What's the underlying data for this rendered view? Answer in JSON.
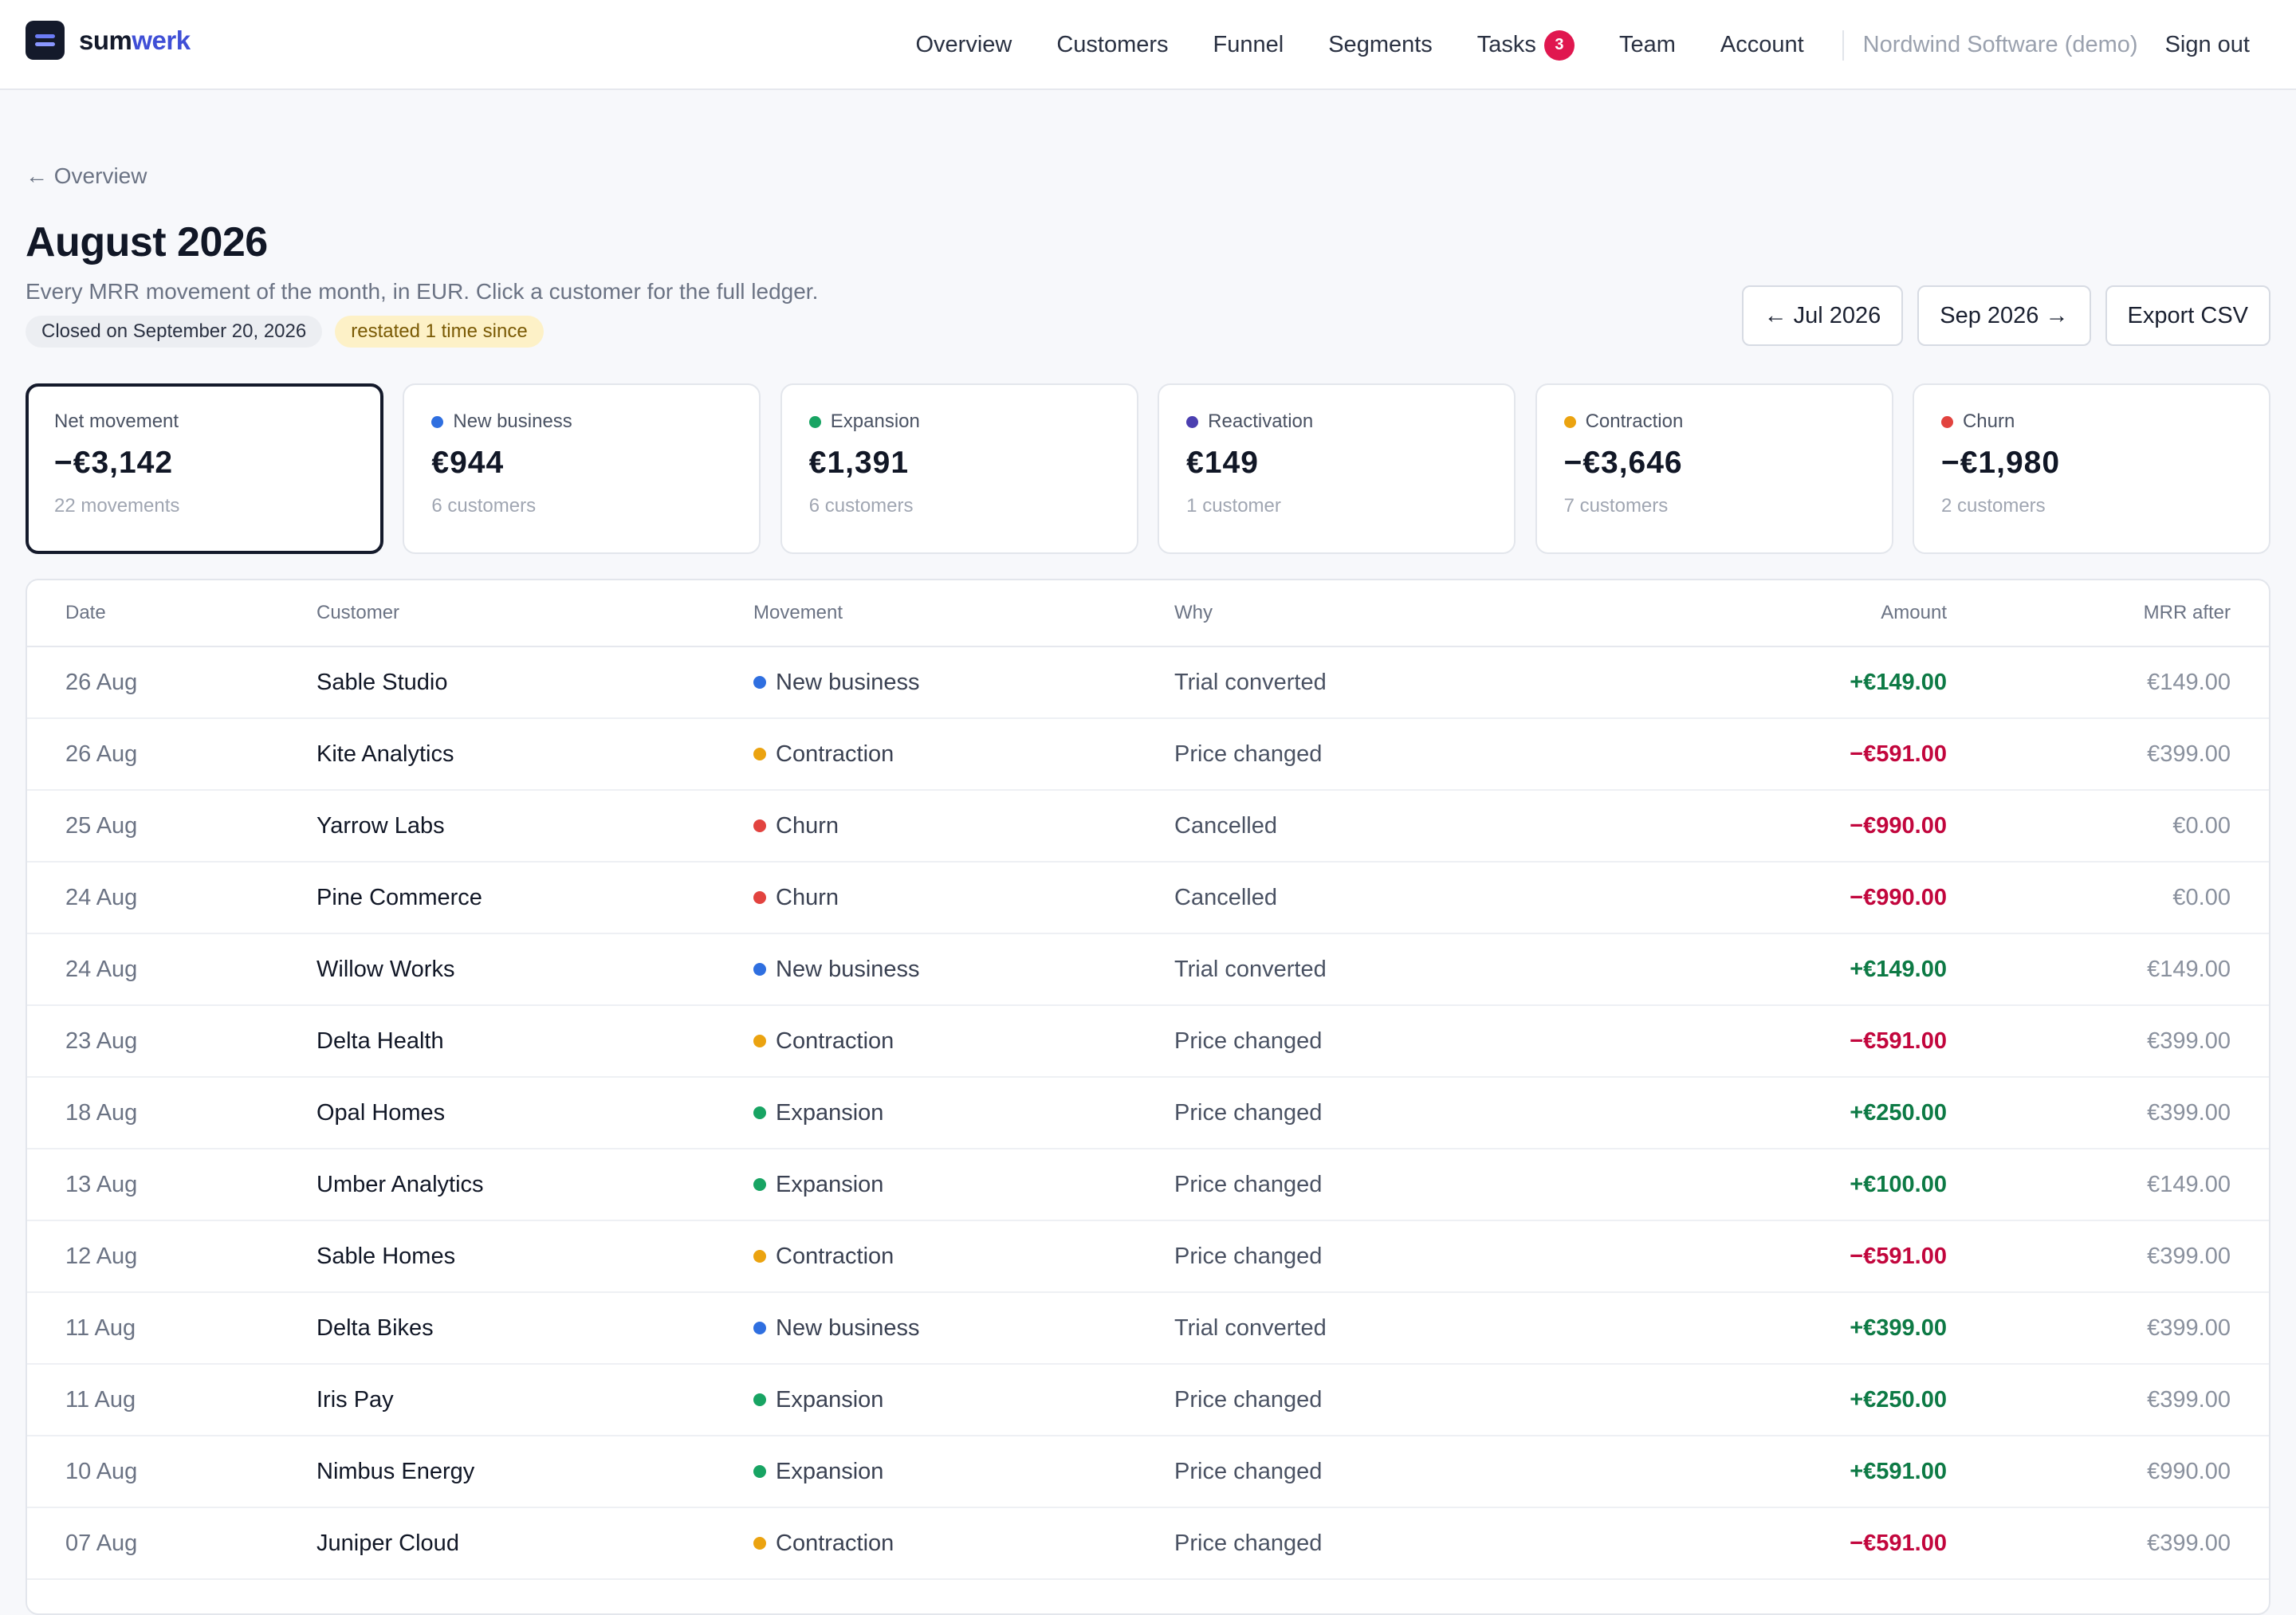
{
  "brand": {
    "part1": "sum",
    "part2": "werk"
  },
  "nav": {
    "items": [
      "Overview",
      "Customers",
      "Funnel",
      "Segments",
      "Tasks",
      "Team",
      "Account"
    ],
    "tasks_badge": "3",
    "org": "Nordwind Software (demo)",
    "signout": "Sign out"
  },
  "header": {
    "back": "← Overview",
    "title": "August 2026",
    "subtitle": "Every MRR movement of the month, in EUR. Click a customer for the full ledger.",
    "closed_pill": "Closed on September 20, 2026",
    "restated_pill": "restated 1 time since",
    "prev_button": "← Jul 2026",
    "next_button": "Sep 2026 →",
    "export_button": "Export CSV"
  },
  "colors": {
    "new_business": "#2f6fe0",
    "expansion": "#18a463",
    "reactivation": "#4b3fb0",
    "contraction": "#eba310",
    "churn": "#e2433f",
    "positive": "#0d7a45",
    "negative": "#c2063d"
  },
  "cards": [
    {
      "label": "Net movement",
      "value": "−€3,142",
      "sub": "22 movements",
      "dot": null
    },
    {
      "label": "New business",
      "value": "€944",
      "sub": "6 customers",
      "dot": "#2f6fe0"
    },
    {
      "label": "Expansion",
      "value": "€1,391",
      "sub": "6 customers",
      "dot": "#18a463"
    },
    {
      "label": "Reactivation",
      "value": "€149",
      "sub": "1 customer",
      "dot": "#4b3fb0"
    },
    {
      "label": "Contraction",
      "value": "−€3,646",
      "sub": "7 customers",
      "dot": "#eba310"
    },
    {
      "label": "Churn",
      "value": "−€1,980",
      "sub": "2 customers",
      "dot": "#e2433f"
    }
  ],
  "table": {
    "headers": {
      "date": "Date",
      "customer": "Customer",
      "movement": "Movement",
      "why": "Why",
      "amount": "Amount",
      "mrr_after": "MRR after"
    },
    "rows": [
      {
        "date": "26 Aug",
        "customer": "Sable Studio",
        "movement": "New business",
        "why": "Trial converted",
        "amount": "+€149.00",
        "mrr_after": "€149.00",
        "dot": "#2f6fe0",
        "sign": "pos"
      },
      {
        "date": "26 Aug",
        "customer": "Kite Analytics",
        "movement": "Contraction",
        "why": "Price changed",
        "amount": "−€591.00",
        "mrr_after": "€399.00",
        "dot": "#eba310",
        "sign": "neg"
      },
      {
        "date": "25 Aug",
        "customer": "Yarrow Labs",
        "movement": "Churn",
        "why": "Cancelled",
        "amount": "−€990.00",
        "mrr_after": "€0.00",
        "dot": "#e2433f",
        "sign": "neg"
      },
      {
        "date": "24 Aug",
        "customer": "Pine Commerce",
        "movement": "Churn",
        "why": "Cancelled",
        "amount": "−€990.00",
        "mrr_after": "€0.00",
        "dot": "#e2433f",
        "sign": "neg"
      },
      {
        "date": "24 Aug",
        "customer": "Willow Works",
        "movement": "New business",
        "why": "Trial converted",
        "amount": "+€149.00",
        "mrr_after": "€149.00",
        "dot": "#2f6fe0",
        "sign": "pos"
      },
      {
        "date": "23 Aug",
        "customer": "Delta Health",
        "movement": "Contraction",
        "why": "Price changed",
        "amount": "−€591.00",
        "mrr_after": "€399.00",
        "dot": "#eba310",
        "sign": "neg"
      },
      {
        "date": "18 Aug",
        "customer": "Opal Homes",
        "movement": "Expansion",
        "why": "Price changed",
        "amount": "+€250.00",
        "mrr_after": "€399.00",
        "dot": "#18a463",
        "sign": "pos"
      },
      {
        "date": "13 Aug",
        "customer": "Umber Analytics",
        "movement": "Expansion",
        "why": "Price changed",
        "amount": "+€100.00",
        "mrr_after": "€149.00",
        "dot": "#18a463",
        "sign": "pos"
      },
      {
        "date": "12 Aug",
        "customer": "Sable Homes",
        "movement": "Contraction",
        "why": "Price changed",
        "amount": "−€591.00",
        "mrr_after": "€399.00",
        "dot": "#eba310",
        "sign": "neg"
      },
      {
        "date": "11 Aug",
        "customer": "Delta Bikes",
        "movement": "New business",
        "why": "Trial converted",
        "amount": "+€399.00",
        "mrr_after": "€399.00",
        "dot": "#2f6fe0",
        "sign": "pos"
      },
      {
        "date": "11 Aug",
        "customer": "Iris Pay",
        "movement": "Expansion",
        "why": "Price changed",
        "amount": "+€250.00",
        "mrr_after": "€399.00",
        "dot": "#18a463",
        "sign": "pos"
      },
      {
        "date": "10 Aug",
        "customer": "Nimbus Energy",
        "movement": "Expansion",
        "why": "Price changed",
        "amount": "+€591.00",
        "mrr_after": "€990.00",
        "dot": "#18a463",
        "sign": "pos"
      },
      {
        "date": "07 Aug",
        "customer": "Juniper Cloud",
        "movement": "Contraction",
        "why": "Price changed",
        "amount": "−€591.00",
        "mrr_after": "€399.00",
        "dot": "#eba310",
        "sign": "neg"
      }
    ]
  }
}
